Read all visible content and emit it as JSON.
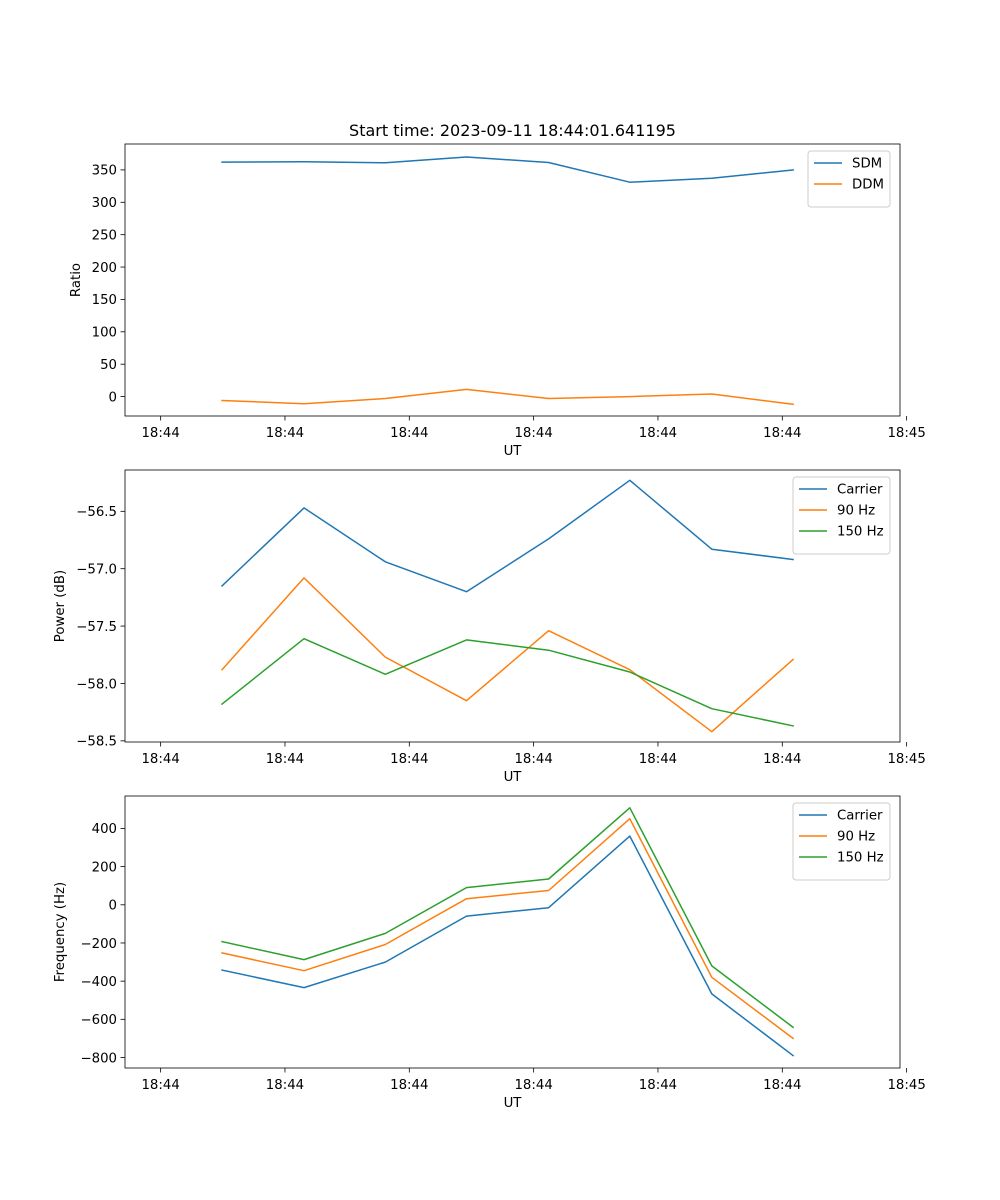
{
  "chart_data": [
    {
      "type": "line",
      "title": "Start time: 2023-09-11 18:44:01.641195",
      "xlabel": "UT",
      "ylabel": "Ratio",
      "xlim": [
        -0.43,
        8.92
      ],
      "ylim": [
        -30,
        390
      ],
      "x_tick_positions": [
        0,
        1.5,
        3,
        4.5,
        6,
        7.5,
        9
      ],
      "x_tick_labels": [
        "18:44",
        "18:44",
        "18:44",
        "18:44",
        "18:44",
        "18:44",
        "18:45"
      ],
      "y_ticks": [
        0,
        50,
        100,
        150,
        200,
        250,
        300,
        350
      ],
      "y_tick_labels": [
        "0",
        "50",
        "100",
        "150",
        "200",
        "250",
        "300",
        "350"
      ],
      "legend_position": "top-right",
      "x": [
        0.74,
        1.73,
        2.71,
        3.69,
        4.68,
        5.66,
        6.65,
        7.63
      ],
      "series": [
        {
          "name": "SDM",
          "color": "#1f77b4",
          "values": [
            362,
            362.5,
            361,
            370,
            361.5,
            331,
            337,
            350
          ]
        },
        {
          "name": "DDM",
          "color": "#ff7f0e",
          "values": [
            -6,
            -11,
            -3,
            11,
            -3,
            0,
            4,
            -12
          ]
        }
      ]
    },
    {
      "type": "line",
      "title": "",
      "xlabel": "UT",
      "ylabel": "Power (dB)",
      "xlim": [
        -0.43,
        8.92
      ],
      "ylim": [
        -58.51,
        -56.14
      ],
      "x_tick_positions": [
        0,
        1.5,
        3,
        4.5,
        6,
        7.5,
        9
      ],
      "x_tick_labels": [
        "18:44",
        "18:44",
        "18:44",
        "18:44",
        "18:44",
        "18:44",
        "18:45"
      ],
      "y_ticks": [
        -58.5,
        -58.0,
        -57.5,
        -57.0,
        -56.5
      ],
      "y_tick_labels": [
        "−58.5",
        "−58.0",
        "−57.5",
        "−57.0",
        "−56.5"
      ],
      "legend_position": "top-right",
      "x": [
        0.74,
        1.73,
        2.71,
        3.69,
        4.68,
        5.66,
        6.65,
        7.63
      ],
      "series": [
        {
          "name": "Carrier",
          "color": "#1f77b4",
          "values": [
            -57.15,
            -56.47,
            -56.94,
            -57.2,
            -56.74,
            -56.23,
            -56.83,
            -56.92
          ]
        },
        {
          "name": "90 Hz",
          "color": "#ff7f0e",
          "values": [
            -57.88,
            -57.08,
            -57.77,
            -58.15,
            -57.54,
            -57.88,
            -58.42,
            -57.79
          ]
        },
        {
          "name": "150 Hz",
          "color": "#2ca02c",
          "values": [
            -58.18,
            -57.61,
            -57.92,
            -57.62,
            -57.71,
            -57.9,
            -58.22,
            -58.37
          ]
        }
      ]
    },
    {
      "type": "line",
      "title": "",
      "xlabel": "UT",
      "ylabel": "Frequency (Hz)",
      "xlim": [
        -0.43,
        8.92
      ],
      "ylim": [
        -855,
        570
      ],
      "x_tick_positions": [
        0,
        1.5,
        3,
        4.5,
        6,
        7.5,
        9
      ],
      "x_tick_labels": [
        "18:44",
        "18:44",
        "18:44",
        "18:44",
        "18:44",
        "18:44",
        "18:45"
      ],
      "y_ticks": [
        -800,
        -600,
        -400,
        -200,
        0,
        200,
        400
      ],
      "y_tick_labels": [
        "−800",
        "−600",
        "−400",
        "−200",
        "0",
        "200",
        "400"
      ],
      "legend_position": "top-right",
      "x": [
        0.74,
        1.73,
        2.71,
        3.69,
        4.68,
        5.66,
        6.65,
        7.63
      ],
      "series": [
        {
          "name": "Carrier",
          "color": "#1f77b4",
          "values": [
            -342,
            -434,
            -300,
            -59,
            -15,
            360,
            -467,
            -790
          ]
        },
        {
          "name": "90 Hz",
          "color": "#ff7f0e",
          "values": [
            -252,
            -345,
            -208,
            32,
            75,
            451,
            -380,
            -700
          ]
        },
        {
          "name": "150 Hz",
          "color": "#2ca02c",
          "values": [
            -193,
            -287,
            -150,
            90,
            135,
            508,
            -320,
            -642
          ]
        }
      ]
    }
  ]
}
